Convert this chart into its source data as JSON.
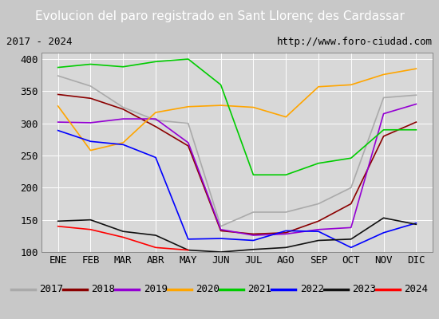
{
  "title": "Evolucion del paro registrado en Sant Llorenç des Cardassar",
  "subtitle_left": "2017 - 2024",
  "subtitle_right": "http://www.foro-ciudad.com",
  "ylim": [
    100,
    410
  ],
  "yticks": [
    100,
    150,
    200,
    250,
    300,
    350,
    400
  ],
  "months": [
    "ENE",
    "FEB",
    "MAR",
    "ABR",
    "MAY",
    "JUN",
    "JUL",
    "AGO",
    "SEP",
    "OCT",
    "NOV",
    "DIC"
  ],
  "series": {
    "2017": {
      "color": "#aaaaaa",
      "data": [
        374,
        358,
        325,
        305,
        300,
        140,
        162,
        162,
        175,
        200,
        340,
        344
      ]
    },
    "2018": {
      "color": "#8b0000",
      "data": [
        345,
        339,
        322,
        295,
        265,
        133,
        128,
        130,
        148,
        175,
        280,
        302
      ]
    },
    "2019": {
      "color": "#9400d3",
      "data": [
        302,
        301,
        307,
        307,
        270,
        135,
        126,
        128,
        135,
        138,
        315,
        330
      ]
    },
    "2020": {
      "color": "#ffa500",
      "data": [
        327,
        258,
        270,
        317,
        326,
        328,
        325,
        310,
        357,
        360,
        376,
        385
      ]
    },
    "2021": {
      "color": "#00cc00",
      "data": [
        387,
        392,
        388,
        396,
        400,
        360,
        220,
        220,
        238,
        246,
        290,
        290
      ]
    },
    "2022": {
      "color": "#0000ff",
      "data": [
        289,
        272,
        267,
        247,
        120,
        121,
        118,
        133,
        132,
        107,
        130,
        145
      ]
    },
    "2023": {
      "color": "#111111",
      "data": [
        148,
        150,
        132,
        126,
        103,
        100,
        104,
        107,
        118,
        120,
        153,
        143
      ]
    },
    "2024": {
      "color": "#ff0000",
      "data": [
        140,
        135,
        123,
        107,
        103,
        null,
        null,
        null,
        null,
        null,
        null,
        null
      ]
    }
  },
  "title_bg": "#4472c4",
  "title_color": "white",
  "title_fontsize": 11,
  "subtitle_fontsize": 9,
  "legend_fontsize": 9,
  "tick_fontsize": 9,
  "fig_bg": "#c8c8c8",
  "plot_bg": "#d8d8d8",
  "subtitle_bg": "#d0d0d0",
  "grid_color": "#bbbbbb"
}
